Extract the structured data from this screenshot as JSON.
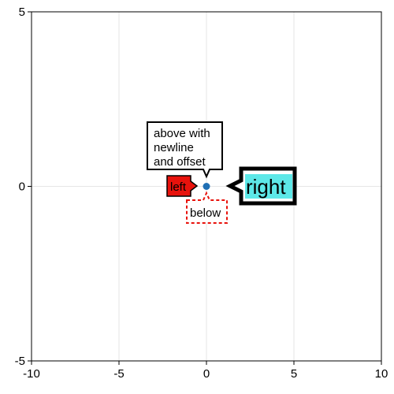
{
  "chart_data": {
    "type": "scatter",
    "xlim": [
      -10,
      10
    ],
    "ylim": [
      -5,
      5
    ],
    "x_ticks": [
      -10,
      -5,
      0,
      5,
      10
    ],
    "y_ticks": [
      -5,
      0,
      5
    ],
    "x_tick_labels": [
      "-10",
      "-5",
      "0",
      "5",
      "10"
    ],
    "y_tick_labels": [
      "-5",
      "0",
      "5"
    ],
    "grid": true,
    "points": [
      {
        "x": 0,
        "y": 0
      }
    ],
    "annotations": [
      {
        "text_lines": [
          "above with",
          "newline",
          "and offset"
        ],
        "placement": "above",
        "style": "white box, black border"
      },
      {
        "text": "left",
        "placement": "left",
        "style": "red box, black border"
      },
      {
        "text": "right",
        "placement": "right",
        "style": "white box, thick black border, cyan text highlight"
      },
      {
        "text": "below",
        "placement": "below",
        "style": "white box, dashed red border"
      }
    ],
    "colors": {
      "point": "#1f6fb4",
      "grid": "#e6e6e6",
      "left_box_fill": "#e8120c",
      "right_text_highlight": "#5de8e8",
      "below_border": "#e8120c"
    }
  }
}
